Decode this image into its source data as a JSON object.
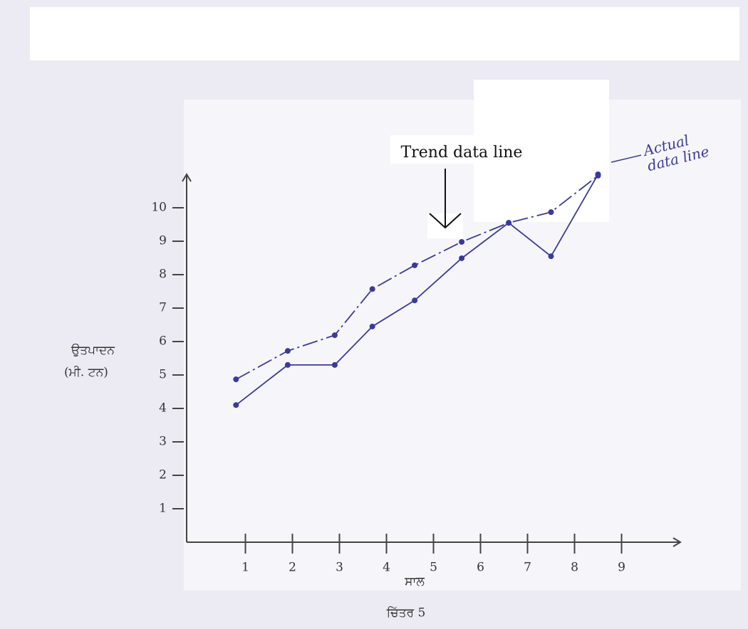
{
  "chart_data": {
    "type": "line",
    "ylabel": [
      "ਉਤਪਾਦਨ",
      "(ਮੀ. ਟਨ)"
    ],
    "xlabel": "ਸਾਲ",
    "caption": "ਚਿੱਤਰ 5",
    "x": [
      0.8,
      1.9,
      2.9,
      3.7,
      4.6,
      5.6,
      6.6,
      7.5,
      8.5
    ],
    "series": [
      {
        "name": "Trend data line",
        "color": "#3a3a9a",
        "line_style": "dashed",
        "values": [
          4.87,
          5.72,
          6.19,
          7.57,
          8.28,
          8.98,
          9.55,
          9.87,
          10.96
        ]
      },
      {
        "name": "Actual data line",
        "color": "#3a3a9a",
        "line_style": "solid",
        "values": [
          4.1,
          5.3,
          5.3,
          6.45,
          7.23,
          8.49,
          9.55,
          8.55,
          11.0
        ]
      }
    ],
    "xlim": [
      -0.25,
      10.25
    ],
    "ylim": [
      0,
      11
    ],
    "xticks": [
      1,
      2,
      3,
      4,
      5,
      6,
      7,
      8,
      9
    ],
    "yticks": [
      1,
      2,
      3,
      4,
      5,
      6,
      7,
      8,
      9,
      10
    ],
    "grid": false
  }
}
